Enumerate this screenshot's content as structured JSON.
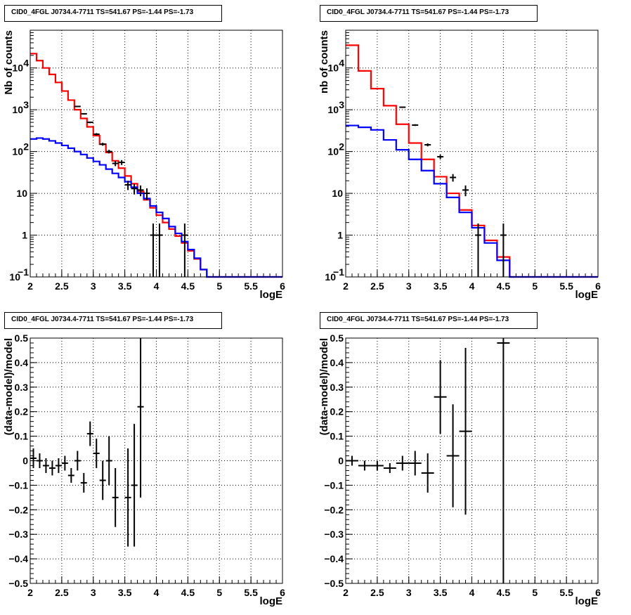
{
  "chart_data": [
    {
      "type": "histogram",
      "panel": "top-left",
      "title": "CID0_4FGL J0734.4-7711 TS=541.67 PS=-1.44 PS=-1.73",
      "xlabel": "logE",
      "ylabel": "Nb of counts",
      "xlim": [
        2,
        6
      ],
      "ylim": [
        0.1,
        80000
      ],
      "yscale": "log",
      "grid": true,
      "bin_edges": [
        2.0,
        2.1,
        2.2,
        2.3,
        2.4,
        2.5,
        2.6,
        2.7,
        2.8,
        2.9,
        3.0,
        3.1,
        3.2,
        3.3,
        3.4,
        3.5,
        3.6,
        3.7,
        3.8,
        3.9,
        4.0,
        4.1,
        4.2,
        4.3,
        4.4,
        4.5,
        4.6,
        4.7,
        4.8,
        4.9,
        5.0,
        5.1,
        5.2,
        5.3,
        5.4,
        5.5,
        5.6,
        5.7,
        5.8,
        5.9,
        6.0
      ],
      "series": [
        {
          "color": "#ff0000",
          "values": [
            22000,
            15000,
            10000,
            7000,
            4500,
            2800,
            1700,
            1000,
            620,
            390,
            240,
            150,
            95,
            60,
            40,
            26,
            17,
            11,
            7,
            4.5,
            3,
            2,
            1.4,
            0.95,
            0.65,
            0.42,
            0.27,
            0.15,
            0.1,
            0.1,
            0.1,
            0.1,
            0.1,
            0.1,
            0.1,
            0.1,
            0.1,
            0.1,
            0.1,
            0.1
          ]
        },
        {
          "color": "#0000ff",
          "values": [
            200,
            210,
            200,
            180,
            160,
            140,
            120,
            100,
            85,
            70,
            58,
            48,
            38,
            30,
            24,
            19,
            14,
            10,
            7.5,
            5,
            3.5,
            2.5,
            1.6,
            1.1,
            0.7,
            0.45,
            0.28,
            0.15,
            0.1,
            0.1,
            0.1,
            0.1,
            0.1,
            0.1,
            0.1,
            0.1,
            0.1,
            0.1,
            0.1,
            0.1
          ]
        }
      ],
      "points": {
        "color": "#000000",
        "x": [
          2.75,
          2.85,
          2.95,
          3.05,
          3.15,
          3.25,
          3.35,
          3.45,
          3.55,
          3.65,
          3.75,
          3.85,
          3.95,
          4.05,
          4.45
        ],
        "y": [
          1200,
          800,
          500,
          260,
          150,
          100,
          52,
          55,
          16,
          13,
          12,
          10,
          1,
          1,
          1
        ]
      }
    },
    {
      "type": "histogram",
      "panel": "top-right",
      "title": "CID0_4FGL J0734.4-7711 TS=541.67 PS=-1.44 PS=-1.73",
      "xlabel": "logE",
      "ylabel": "nb of counts",
      "xlim": [
        2,
        6
      ],
      "ylim": [
        0.1,
        80000
      ],
      "yscale": "log",
      "grid": true,
      "bin_edges": [
        2.0,
        2.2,
        2.4,
        2.6,
        2.8,
        3.0,
        3.2,
        3.4,
        3.6,
        3.8,
        4.0,
        4.2,
        4.4,
        4.6,
        4.8,
        5.0,
        5.2,
        5.4,
        5.6,
        5.8,
        6.0
      ],
      "series": [
        {
          "color": "#ff0000",
          "values": [
            35000,
            8500,
            3200,
            1250,
            450,
            160,
            65,
            25,
            10,
            4,
            1.7,
            0.75,
            0.3,
            0.1,
            0.1,
            0.1,
            0.1,
            0.1,
            0.1,
            0.1
          ]
        },
        {
          "color": "#0000ff",
          "values": [
            420,
            380,
            330,
            190,
            110,
            65,
            35,
            17,
            8,
            3.5,
            1.5,
            0.65,
            0.25,
            0.1,
            0.1,
            0.1,
            0.1,
            0.1,
            0.1,
            0.1
          ]
        }
      ],
      "points": {
        "color": "#000000",
        "x": [
          2.9,
          3.1,
          3.3,
          3.5,
          3.7,
          3.9,
          4.1,
          4.5
        ],
        "y": [
          1150,
          430,
          145,
          75,
          24,
          12,
          1,
          1
        ]
      }
    },
    {
      "type": "scatter",
      "panel": "bottom-left",
      "title": "CID0_4FGL J0734.4-7711 TS=541.67 PS=-1.44 PS=-1.73",
      "xlabel": "logE",
      "ylabel": "(data-model)/model",
      "xlim": [
        2,
        6
      ],
      "ylim": [
        -0.5,
        0.5
      ],
      "grid": true,
      "points": [
        {
          "x": 2.05,
          "y": 0.01,
          "err": 0.04
        },
        {
          "x": 2.15,
          "y": 0.0,
          "err": 0.03
        },
        {
          "x": 2.25,
          "y": -0.02,
          "err": 0.03
        },
        {
          "x": 2.35,
          "y": -0.03,
          "err": 0.03
        },
        {
          "x": 2.45,
          "y": -0.02,
          "err": 0.03
        },
        {
          "x": 2.55,
          "y": -0.01,
          "err": 0.03
        },
        {
          "x": 2.65,
          "y": -0.06,
          "err": 0.03
        },
        {
          "x": 2.75,
          "y": 0.0,
          "err": 0.04
        },
        {
          "x": 2.85,
          "y": -0.09,
          "err": 0.04
        },
        {
          "x": 2.95,
          "y": 0.11,
          "err": 0.05
        },
        {
          "x": 3.05,
          "y": 0.03,
          "err": 0.06
        },
        {
          "x": 3.15,
          "y": -0.08,
          "err": 0.08
        },
        {
          "x": 3.25,
          "y": 0.0,
          "err": 0.1
        },
        {
          "x": 3.35,
          "y": -0.15,
          "err": 0.12
        },
        {
          "x": 3.55,
          "y": -0.15,
          "err": 0.2
        },
        {
          "x": 3.65,
          "y": -0.1,
          "err": 0.25
        },
        {
          "x": 3.75,
          "y": 0.22,
          "err": 0.37
        }
      ]
    },
    {
      "type": "scatter",
      "panel": "bottom-right",
      "title": "CID0_4FGL J0734.4-7711 TS=541.67 PS=-1.44 PS=-1.73",
      "xlabel": "logE",
      "ylabel": "(data-model)/model",
      "xlim": [
        2,
        6
      ],
      "ylim": [
        -0.5,
        0.5
      ],
      "grid": true,
      "points": [
        {
          "x": 2.1,
          "y": 0.0,
          "err": 0.02
        },
        {
          "x": 2.3,
          "y": -0.02,
          "err": 0.02
        },
        {
          "x": 2.5,
          "y": -0.02,
          "err": 0.02
        },
        {
          "x": 2.7,
          "y": -0.03,
          "err": 0.02
        },
        {
          "x": 2.9,
          "y": -0.01,
          "err": 0.03
        },
        {
          "x": 3.1,
          "y": -0.01,
          "err": 0.05
        },
        {
          "x": 3.3,
          "y": -0.05,
          "err": 0.08
        },
        {
          "x": 3.5,
          "y": 0.26,
          "err": 0.15
        },
        {
          "x": 3.7,
          "y": 0.02,
          "err": 0.21
        },
        {
          "x": 3.9,
          "y": 0.12,
          "err": 0.34
        },
        {
          "x": 4.5,
          "y": 0.48,
          "err": 1.0
        }
      ]
    }
  ]
}
